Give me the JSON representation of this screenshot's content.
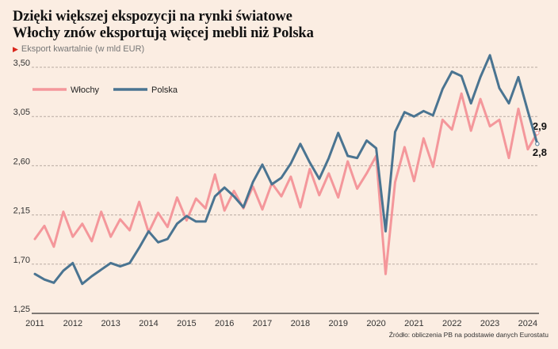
{
  "title_line1": "Dzięki większej ekspozycji na rynki światowe",
  "title_line2": "Włochy znów eksportują więcej mebli niż Polska",
  "subtitle": "Eksport kwartalnie (w mld EUR)",
  "subtitle_icon": "triangle-right-icon",
  "source": "Źródło: obliczenia PB na podstawie danych Eurostatu",
  "chart_data": {
    "type": "line",
    "title": "Dzięki większej ekspozycji na rynki światowe Włochy znów eksportują więcej mebli niż Polska",
    "subtitle": "Eksport kwartalnie (w mld EUR)",
    "xlabel": "",
    "ylabel": "",
    "ylim": [
      1.25,
      3.5
    ],
    "yticks": [
      "1,25",
      "1,70",
      "2,15",
      "2,60",
      "3,05",
      "3,50"
    ],
    "ytick_values": [
      1.25,
      1.7,
      2.15,
      2.6,
      3.05,
      3.5
    ],
    "xticks": [
      "2011",
      "2012",
      "2013",
      "2014",
      "2015",
      "2016",
      "2017",
      "2018",
      "2019",
      "2020",
      "2021",
      "2022",
      "2023",
      "2024"
    ],
    "x_start": "2011Q1",
    "x_frequency": "quarterly",
    "grid": "horizontal dashed",
    "legend_position": "top-left",
    "series": [
      {
        "name": "Włochy",
        "color": "#f4979b",
        "values": [
          1.93,
          2.05,
          1.86,
          2.18,
          1.95,
          2.07,
          1.91,
          2.18,
          1.95,
          2.11,
          2.01,
          2.27,
          1.99,
          2.17,
          2.04,
          2.31,
          2.1,
          2.3,
          2.21,
          2.52,
          2.19,
          2.37,
          2.21,
          2.41,
          2.2,
          2.44,
          2.32,
          2.5,
          2.22,
          2.57,
          2.33,
          2.53,
          2.31,
          2.64,
          2.39,
          2.53,
          2.69,
          1.61,
          2.45,
          2.77,
          2.46,
          2.85,
          2.59,
          3.02,
          2.93,
          3.26,
          2.92,
          3.21,
          2.96,
          3.02,
          2.67,
          3.12,
          2.75,
          2.9
        ],
        "end_label": "2,9"
      },
      {
        "name": "Polska",
        "color": "#4a7491",
        "values": [
          1.61,
          1.56,
          1.53,
          1.64,
          1.71,
          1.52,
          1.59,
          1.65,
          1.71,
          1.68,
          1.71,
          1.85,
          2.0,
          1.9,
          1.93,
          2.07,
          2.14,
          2.09,
          2.09,
          2.32,
          2.4,
          2.32,
          2.22,
          2.45,
          2.61,
          2.43,
          2.49,
          2.62,
          2.8,
          2.63,
          2.48,
          2.67,
          2.9,
          2.69,
          2.67,
          2.83,
          2.76,
          2.0,
          2.91,
          3.09,
          3.05,
          3.1,
          3.06,
          3.3,
          3.46,
          3.42,
          3.17,
          3.41,
          3.61,
          3.31,
          3.17,
          3.41,
          3.1,
          2.8
        ],
        "end_label": "2,8"
      }
    ]
  }
}
